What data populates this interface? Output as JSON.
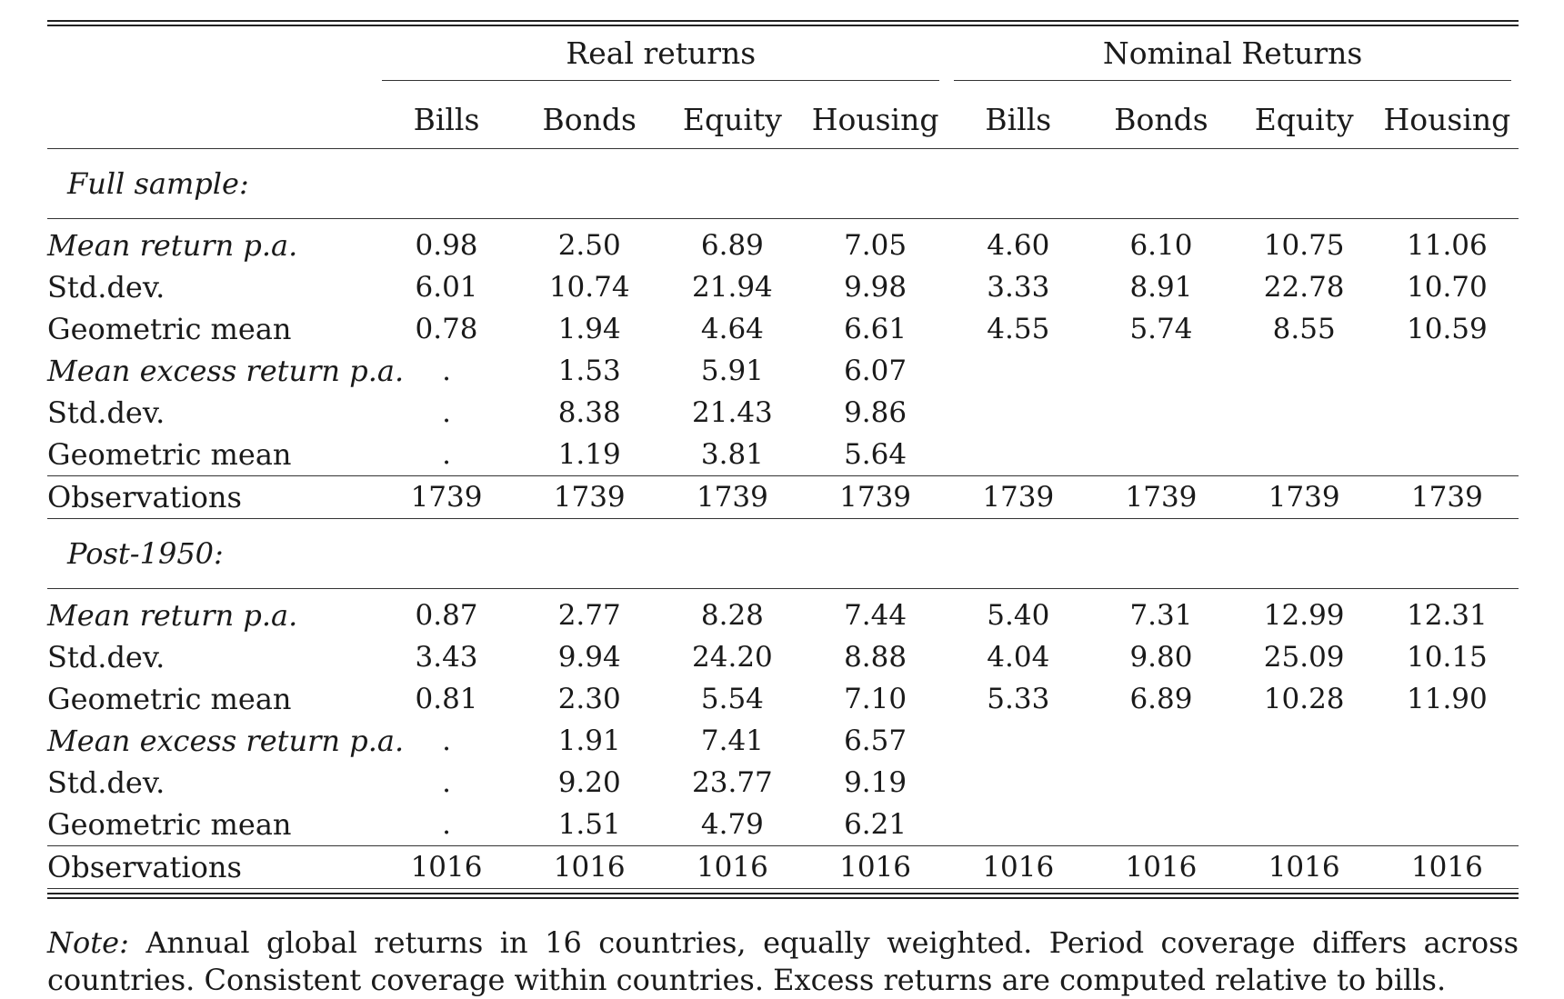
{
  "table": {
    "groups": [
      "Real returns",
      "Nominal Returns"
    ],
    "columns": [
      "Bills",
      "Bonds",
      "Equity",
      "Housing",
      "Bills",
      "Bonds",
      "Equity",
      "Housing"
    ],
    "sections": [
      {
        "title": "Full sample:",
        "rows": [
          {
            "label": "Mean return p.a.",
            "italic": true,
            "values": [
              "0.98",
              "2.50",
              "6.89",
              "7.05",
              "4.60",
              "6.10",
              "10.75",
              "11.06"
            ]
          },
          {
            "label": "Std.dev.",
            "italic": false,
            "values": [
              "6.01",
              "10.74",
              "21.94",
              "9.98",
              "3.33",
              "8.91",
              "22.78",
              "10.70"
            ]
          },
          {
            "label": "Geometric mean",
            "italic": false,
            "values": [
              "0.78",
              "1.94",
              "4.64",
              "6.61",
              "4.55",
              "5.74",
              "8.55",
              "10.59"
            ]
          },
          {
            "label": "Mean excess return p.a.",
            "italic": true,
            "values": [
              ".",
              "1.53",
              "5.91",
              "6.07",
              "",
              "",
              "",
              ""
            ]
          },
          {
            "label": "Std.dev.",
            "italic": false,
            "values": [
              ".",
              "8.38",
              "21.43",
              "9.86",
              "",
              "",
              "",
              ""
            ]
          },
          {
            "label": "Geometric mean",
            "italic": false,
            "values": [
              ".",
              "1.19",
              "3.81",
              "5.64",
              "",
              "",
              "",
              ""
            ]
          }
        ],
        "observations": {
          "label": "Observations",
          "values": [
            "1739",
            "1739",
            "1739",
            "1739",
            "1739",
            "1739",
            "1739",
            "1739"
          ]
        }
      },
      {
        "title": "Post-1950:",
        "rows": [
          {
            "label": "Mean return p.a.",
            "italic": true,
            "values": [
              "0.87",
              "2.77",
              "8.28",
              "7.44",
              "5.40",
              "7.31",
              "12.99",
              "12.31"
            ]
          },
          {
            "label": "Std.dev.",
            "italic": false,
            "values": [
              "3.43",
              "9.94",
              "24.20",
              "8.88",
              "4.04",
              "9.80",
              "25.09",
              "10.15"
            ]
          },
          {
            "label": "Geometric mean",
            "italic": false,
            "values": [
              "0.81",
              "2.30",
              "5.54",
              "7.10",
              "5.33",
              "6.89",
              "10.28",
              "11.90"
            ]
          },
          {
            "label": "Mean excess return p.a.",
            "italic": true,
            "values": [
              ".",
              "1.91",
              "7.41",
              "6.57",
              "",
              "",
              "",
              ""
            ]
          },
          {
            "label": "Std.dev.",
            "italic": false,
            "values": [
              ".",
              "9.20",
              "23.77",
              "9.19",
              "",
              "",
              "",
              ""
            ]
          },
          {
            "label": "Geometric mean",
            "italic": false,
            "values": [
              ".",
              "1.51",
              "4.79",
              "6.21",
              "",
              "",
              "",
              ""
            ]
          }
        ],
        "observations": {
          "label": "Observations",
          "values": [
            "1016",
            "1016",
            "1016",
            "1016",
            "1016",
            "1016",
            "1016",
            "1016"
          ]
        }
      }
    ]
  },
  "note": {
    "label": "Note:",
    "text": "Annual global returns in 16 countries, equally weighted. Period coverage differs across countries. Consistent coverage within countries. Excess returns are computed relative to bills."
  }
}
